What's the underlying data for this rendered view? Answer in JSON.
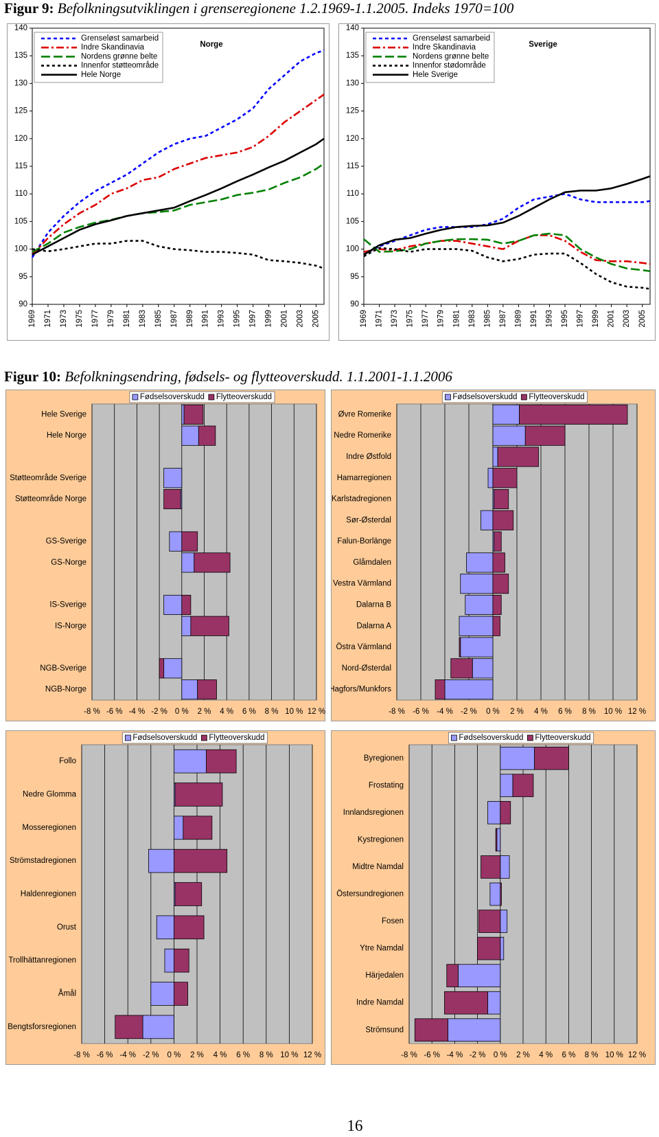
{
  "figures": [
    {
      "label": "Figur 9:",
      "caption": "Befolkningsutviklingen i grenseregionene 1.2.1969-1.1.2005. Indeks 1970=100"
    },
    {
      "label": "Figur 10:",
      "caption": "Befolkningsendring, fødsels- og flytteoverskudd. 1.1.2001-1.1.2006"
    }
  ],
  "chart_data": [
    {
      "type": "line",
      "title": "Norge",
      "x": [
        1969,
        1971,
        1973,
        1975,
        1977,
        1979,
        1981,
        1983,
        1985,
        1987,
        1989,
        1991,
        1993,
        1995,
        1997,
        1999,
        2001,
        2003,
        2005,
        2006
      ],
      "xlim": [
        1969,
        2006
      ],
      "xticks": [
        1969,
        1971,
        1973,
        1975,
        1977,
        1979,
        1981,
        1983,
        1985,
        1987,
        1989,
        1991,
        1993,
        1995,
        1997,
        1999,
        2001,
        2003,
        2005
      ],
      "ylim": [
        90,
        140
      ],
      "yticks": [
        90,
        95,
        100,
        105,
        110,
        115,
        120,
        125,
        130,
        135,
        140
      ],
      "grid": false,
      "series": [
        {
          "name": "Grenseløst samarbeid",
          "color": "#0000ff",
          "dash": "dash",
          "values": [
            98.5,
            103,
            106,
            108.5,
            110.5,
            112,
            113.5,
            115.5,
            117.5,
            119,
            120,
            120.5,
            122,
            123.5,
            125.5,
            129,
            131.5,
            134,
            135.5,
            136
          ]
        },
        {
          "name": "Indre Skandinavia",
          "color": "#dd0000",
          "dash": "dash-dot",
          "values": [
            99,
            102,
            104.5,
            106.5,
            108,
            110,
            111,
            112.5,
            113,
            114.5,
            115.5,
            116.5,
            117,
            117.5,
            118.5,
            120.5,
            123,
            125,
            127,
            128
          ]
        },
        {
          "name": "Nordens grønne belte",
          "color": "#008000",
          "dash": "long-dash",
          "values": [
            99.5,
            101,
            103,
            104,
            104.8,
            105.3,
            106,
            106.5,
            106.7,
            107,
            108,
            108.5,
            109,
            109.8,
            110.2,
            110.8,
            112,
            113,
            114.5,
            115.5
          ]
        },
        {
          "name": "Innenfor støtteområde",
          "color": "#000000",
          "dash": "dot",
          "values": [
            100,
            99.6,
            100,
            100.5,
            101,
            101,
            101.5,
            101.5,
            100.5,
            100,
            99.8,
            99.5,
            99.5,
            99.3,
            99,
            98,
            97.8,
            97.5,
            97,
            96.5
          ]
        },
        {
          "name": "Hele Norge",
          "color": "#000000",
          "dash": "solid",
          "values": [
            99,
            100.5,
            102,
            103.5,
            104.5,
            105.2,
            106,
            106.5,
            107,
            107.5,
            108.7,
            109.8,
            111,
            112.3,
            113.5,
            114.8,
            116,
            117.5,
            119,
            120
          ]
        }
      ]
    },
    {
      "type": "line",
      "title": "Sverige",
      "x": [
        1969,
        1971,
        1973,
        1975,
        1977,
        1979,
        1981,
        1983,
        1985,
        1987,
        1989,
        1991,
        1993,
        1995,
        1997,
        1999,
        2001,
        2003,
        2005,
        2006
      ],
      "xlim": [
        1969,
        2006
      ],
      "xticks": [
        1969,
        1971,
        1973,
        1975,
        1977,
        1979,
        1981,
        1983,
        1985,
        1987,
        1989,
        1991,
        1993,
        1995,
        1997,
        1999,
        2001,
        2003,
        2005
      ],
      "ylim": [
        90,
        140
      ],
      "yticks": [
        90,
        95,
        100,
        105,
        110,
        115,
        120,
        125,
        130,
        135,
        140
      ],
      "grid": false,
      "series": [
        {
          "name": "Grenseløst samarbeid",
          "color": "#0000ff",
          "dash": "dash",
          "values": [
            99,
            100.5,
            101.5,
            102.5,
            103.5,
            104,
            104,
            104,
            104.5,
            105.5,
            107.5,
            109,
            109.5,
            110,
            109,
            108.5,
            108.5,
            108.5,
            108.5,
            108.7
          ]
        },
        {
          "name": "Indre Skandinavia",
          "color": "#dd0000",
          "dash": "dash-dot",
          "values": [
            99.5,
            100,
            99.8,
            100.5,
            101,
            101.5,
            101.5,
            101,
            100.5,
            100,
            101.5,
            102.5,
            102.5,
            101.5,
            99.5,
            98,
            97.8,
            97.8,
            97.5,
            97.3
          ]
        },
        {
          "name": "Nordens grønne belte",
          "color": "#008000",
          "dash": "long-dash",
          "values": [
            101.8,
            99.5,
            99.6,
            100,
            101,
            101.5,
            101.8,
            101.8,
            101.7,
            101,
            101.5,
            102.5,
            102.8,
            102.5,
            100,
            98.5,
            97.3,
            96.5,
            96.2,
            96
          ]
        },
        {
          "name": "Innenfor stødområde",
          "color": "#000000",
          "dash": "dot",
          "values": [
            98.7,
            100.2,
            100,
            99.5,
            100,
            100,
            100,
            99.7,
            98.5,
            97.8,
            98.2,
            99,
            99.2,
            99.2,
            97.5,
            95.5,
            94,
            93.2,
            93,
            92.8
          ]
        },
        {
          "name": "Hele Sverige",
          "color": "#000000",
          "dash": "solid",
          "values": [
            99,
            100.7,
            101.7,
            102,
            102.8,
            103.5,
            104,
            104.2,
            104.3,
            104.8,
            106,
            107.5,
            109,
            110.3,
            110.6,
            110.6,
            111,
            111.8,
            112.7,
            113.2
          ]
        }
      ]
    },
    {
      "type": "bar",
      "orientation": "horizontal",
      "stacked": true,
      "grid": true,
      "categories": [
        "Hele Sverige",
        "Hele Norge",
        null,
        "Støtteområde Sverige",
        "Støtteområde Norge",
        null,
        "GS-Sverige",
        "GS-Norge",
        null,
        "IS-Sverige",
        "IS-Norge",
        null,
        "NGB-Sverige",
        "NGB-Norge"
      ],
      "xlim": [
        -8,
        12
      ],
      "xticks": [
        {
          "value": -8,
          "label": "-8 %"
        },
        {
          "value": -6,
          "label": "-6 %"
        },
        {
          "value": -4,
          "label": "-4 %"
        },
        {
          "value": -2,
          "label": "-2 %"
        },
        {
          "value": 0,
          "label": "0 %"
        },
        {
          "value": 2,
          "label": "2 %"
        },
        {
          "value": 4,
          "label": "4 %"
        },
        {
          "value": 6,
          "label": "6 %"
        },
        {
          "value": 8,
          "label": "8 %"
        },
        {
          "value": 10,
          "label": "10 %"
        },
        {
          "value": 12,
          "label": "12 %"
        }
      ],
      "series": [
        {
          "name": "Fødselsoverskudd",
          "color": "#9999ff",
          "values": [
            0.2,
            1.5,
            null,
            -1.6,
            -0.1,
            null,
            -1.1,
            1.1,
            null,
            -1.6,
            0.8,
            null,
            -1.6,
            1.4
          ]
        },
        {
          "name": "Flytteoverskudd",
          "color": "#993366",
          "values": [
            1.7,
            1.5,
            null,
            0,
            -1.5,
            null,
            1.4,
            3.2,
            null,
            0.8,
            3.4,
            null,
            -0.4,
            1.7
          ]
        }
      ]
    },
    {
      "type": "bar",
      "orientation": "horizontal",
      "stacked": true,
      "grid": true,
      "categories": [
        "Øvre Romerike",
        "Nedre Romerike",
        "Indre Østfold",
        "Hamarregionen",
        "Karlstadregionen",
        "Sør-Østerdal",
        "Falun-Borlänge",
        "Glåmdalen",
        "Vestra Värmland",
        "Dalarna B",
        "Dalarna A",
        "Östra Värmland",
        "Nord-Østerdal",
        "Hagfors/Munkfors"
      ],
      "xlim": [
        -8,
        12
      ],
      "xticks": [
        {
          "value": -8,
          "label": "-8 %"
        },
        {
          "value": -6,
          "label": "-6 %"
        },
        {
          "value": -4,
          "label": "-4 %"
        },
        {
          "value": -2,
          "label": "-2 %"
        },
        {
          "value": 0,
          "label": "0 %"
        },
        {
          "value": 2,
          "label": "2 %"
        },
        {
          "value": 4,
          "label": "4 %"
        },
        {
          "value": 6,
          "label": "6 %"
        },
        {
          "value": 8,
          "label": "8 %"
        },
        {
          "value": 10,
          "label": "10 %"
        },
        {
          "value": 12,
          "label": "12 %"
        }
      ],
      "series": [
        {
          "name": "Fødselsoverskudd",
          "color": "#9999ff",
          "values": [
            2.2,
            2.7,
            0.4,
            -0.4,
            0.1,
            -1.0,
            0.1,
            -2.2,
            -2.7,
            -2.3,
            -2.8,
            -2.7,
            -1.7,
            -4.0
          ]
        },
        {
          "name": "Flytteoverskudd",
          "color": "#993366",
          "values": [
            9.0,
            3.3,
            3.4,
            2.0,
            1.2,
            1.7,
            0.6,
            1.0,
            1.3,
            0.7,
            0.6,
            -0.1,
            -1.8,
            -0.8
          ]
        }
      ]
    },
    {
      "type": "bar",
      "orientation": "horizontal",
      "stacked": true,
      "grid": true,
      "categories": [
        "Follo",
        "Nedre Glomma",
        "Mosseregionen",
        "Strömstadregionen",
        "Haldenregionen",
        "Orust",
        "Trollhättanregionen",
        "Åmål",
        "Bengtsforsregionen"
      ],
      "xlim": [
        -8,
        12
      ],
      "xticks": [
        {
          "value": -8,
          "label": "-8 %"
        },
        {
          "value": -6,
          "label": "-6 %"
        },
        {
          "value": -4,
          "label": "-4 %"
        },
        {
          "value": -2,
          "label": "-2 %"
        },
        {
          "value": 0,
          "label": "0 %"
        },
        {
          "value": 2,
          "label": "2 %"
        },
        {
          "value": 4,
          "label": "4 %"
        },
        {
          "value": 6,
          "label": "6 %"
        },
        {
          "value": 8,
          "label": "8 %"
        },
        {
          "value": 10,
          "label": "10 %"
        },
        {
          "value": 12,
          "label": "12 %"
        }
      ],
      "series": [
        {
          "name": "Fødselsoverskudd",
          "color": "#9999ff",
          "values": [
            2.8,
            0.1,
            0.8,
            -2.2,
            0.1,
            -1.5,
            -0.8,
            -2.0,
            -2.7
          ]
        },
        {
          "name": "Flytteoverskudd",
          "color": "#993366",
          "values": [
            2.6,
            4.1,
            2.5,
            4.6,
            2.3,
            2.6,
            1.3,
            1.2,
            -2.4
          ]
        }
      ]
    },
    {
      "type": "bar",
      "orientation": "horizontal",
      "stacked": true,
      "grid": true,
      "categories": [
        "Byregionen",
        "Frostating",
        "Innlandsregionen",
        "Kystregionen",
        "Midtre Namdal",
        "Östersundregionen",
        "Fosen",
        "Ytre Namdal",
        "Härjedalen",
        "Indre Namdal",
        "Strömsund"
      ],
      "xlim": [
        -8,
        12
      ],
      "xticks": [
        {
          "value": -8,
          "label": "-8 %"
        },
        {
          "value": -6,
          "label": "-6 %"
        },
        {
          "value": -4,
          "label": "-4 %"
        },
        {
          "value": -2,
          "label": "-2 %"
        },
        {
          "value": 0,
          "label": "0 %"
        },
        {
          "value": 2,
          "label": "2 %"
        },
        {
          "value": 4,
          "label": "4 %"
        },
        {
          "value": 6,
          "label": "6 %"
        },
        {
          "value": 8,
          "label": "8 %"
        },
        {
          "value": 10,
          "label": "10 %"
        },
        {
          "value": 12,
          "label": "12 %"
        }
      ],
      "series": [
        {
          "name": "Fødselsoverskudd",
          "color": "#9999ff",
          "values": [
            3.0,
            1.1,
            -1.1,
            -0.3,
            0.8,
            -0.9,
            0.6,
            0.3,
            -3.7,
            -1.1,
            -4.6
          ]
        },
        {
          "name": "Flytteoverskudd",
          "color": "#993366",
          "values": [
            3.0,
            1.8,
            0.9,
            -0.1,
            -1.7,
            0.1,
            -1.9,
            -2.0,
            -1.0,
            -3.8,
            -2.9
          ]
        }
      ]
    }
  ],
  "page_number": "16"
}
